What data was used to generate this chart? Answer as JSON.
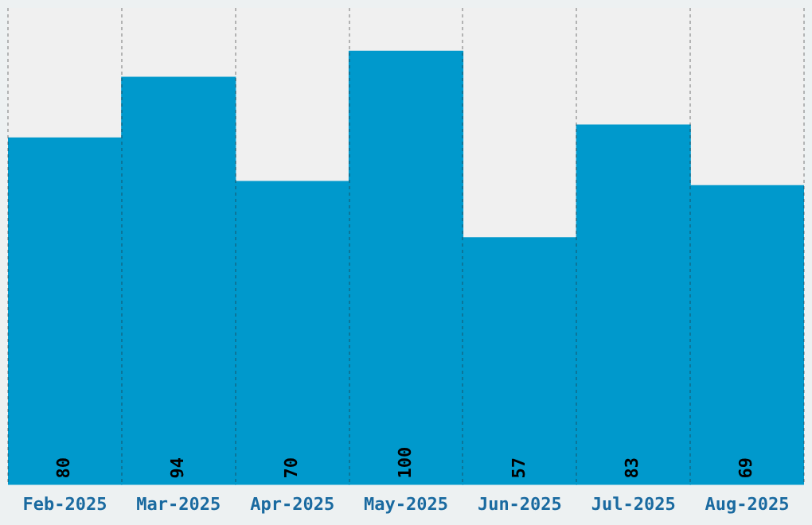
{
  "chart_data": {
    "type": "bar",
    "categories": [
      "Feb-2025",
      "Mar-2025",
      "Apr-2025",
      "May-2025",
      "Jun-2025",
      "Jul-2025",
      "Aug-2025"
    ],
    "values": [
      80,
      94,
      70,
      100,
      57,
      83,
      69
    ],
    "color": "#0099cc",
    "ylim": [
      0,
      110
    ],
    "tick_labels": "x",
    "grid": "x",
    "data_labels": true
  }
}
